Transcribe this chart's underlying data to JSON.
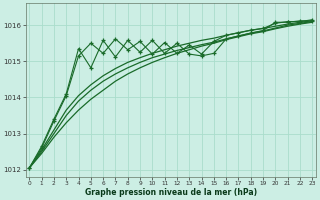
{
  "background_color": "#cceee4",
  "grid_color": "#aaddcc",
  "line_color": "#1a6b2a",
  "xlabel": "Graphe pression niveau de la mer (hPa)",
  "ylim": [
    1011.8,
    1016.6
  ],
  "xlim": [
    -0.3,
    23.3
  ],
  "yticks": [
    1012,
    1013,
    1014,
    1015,
    1016
  ],
  "xticks": [
    0,
    1,
    2,
    3,
    4,
    5,
    6,
    7,
    8,
    9,
    10,
    11,
    12,
    13,
    14,
    15,
    16,
    17,
    18,
    19,
    20,
    21,
    22,
    23
  ],
  "line_smooth1": [
    1012.05,
    1012.45,
    1012.9,
    1013.3,
    1013.65,
    1013.95,
    1014.2,
    1014.45,
    1014.65,
    1014.82,
    1014.97,
    1015.1,
    1015.22,
    1015.32,
    1015.42,
    1015.5,
    1015.6,
    1015.68,
    1015.76,
    1015.82,
    1015.9,
    1015.97,
    1016.03,
    1016.08
  ],
  "line_smooth2": [
    1012.05,
    1012.5,
    1013.0,
    1013.5,
    1013.9,
    1014.2,
    1014.45,
    1014.65,
    1014.82,
    1014.97,
    1015.1,
    1015.2,
    1015.3,
    1015.38,
    1015.46,
    1015.53,
    1015.62,
    1015.7,
    1015.78,
    1015.84,
    1015.92,
    1016.0,
    1016.05,
    1016.1
  ],
  "line_smooth3": [
    1012.05,
    1012.55,
    1013.1,
    1013.65,
    1014.05,
    1014.35,
    1014.6,
    1014.8,
    1014.97,
    1015.1,
    1015.22,
    1015.32,
    1015.42,
    1015.5,
    1015.58,
    1015.64,
    1015.72,
    1015.79,
    1015.86,
    1015.91,
    1015.97,
    1016.03,
    1016.08,
    1016.12
  ],
  "line_zigzag1_x": [
    0,
    1,
    2,
    3,
    4,
    5,
    6,
    7,
    8,
    9,
    10,
    11,
    12,
    13,
    14,
    15,
    16,
    17,
    18,
    19,
    20,
    21,
    22,
    23
  ],
  "line_zigzag1_y": [
    1012.05,
    1012.6,
    1013.35,
    1014.05,
    1015.15,
    1015.5,
    1015.22,
    1015.62,
    1015.32,
    1015.55,
    1015.2,
    1015.52,
    1015.22,
    1015.45,
    1015.2,
    1015.55,
    1015.72,
    1015.79,
    1015.86,
    1015.91,
    1016.05,
    1016.1,
    1016.1,
    1016.15
  ],
  "line_zigzag2_x": [
    0,
    1,
    2,
    3,
    4,
    5,
    6,
    7,
    8,
    9,
    10,
    11,
    12,
    13,
    14,
    15,
    16,
    17,
    18,
    19,
    20,
    21,
    22,
    23
  ],
  "line_zigzag2_y": [
    1012.05,
    1012.65,
    1013.4,
    1014.1,
    1015.35,
    1014.82,
    1015.58,
    1015.12,
    1015.58,
    1015.25,
    1015.58,
    1015.22,
    1015.5,
    1015.2,
    1015.15,
    1015.22,
    1015.62,
    1015.7,
    1015.78,
    1015.85,
    1016.08,
    1016.08,
    1016.12,
    1016.12
  ]
}
